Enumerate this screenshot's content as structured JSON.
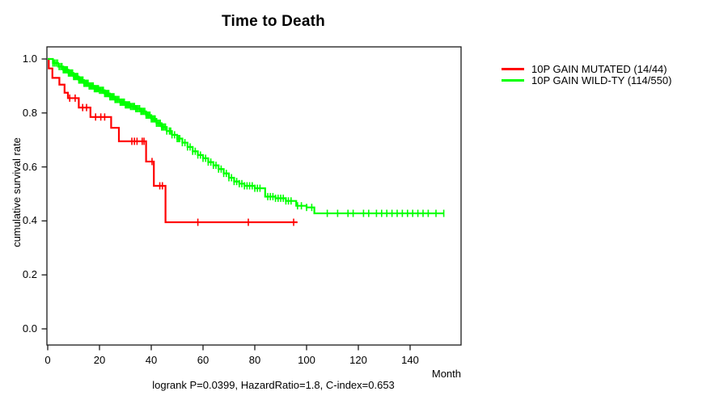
{
  "chart_data": {
    "type": "line",
    "chart_kind": "kaplan-meier-step",
    "title": "Time to Death",
    "xlabel": "Month",
    "ylabel": "cumulative survival rate",
    "xlim": [
      0,
      160
    ],
    "ylim": [
      0,
      1.0
    ],
    "xticks": [
      0,
      20,
      40,
      60,
      80,
      100,
      120,
      140
    ],
    "yticks": [
      0.0,
      0.2,
      0.4,
      0.6,
      0.8,
      1.0
    ],
    "grid": false,
    "legend_position": "right-outside",
    "annotation": "logrank P=0.0399, HazardRatio=1.8, C-index=0.653",
    "series": [
      {
        "name": "10P GAIN MUTATED (14/44)",
        "color": "#ff0000",
        "events": 14,
        "n": 44,
        "end_month": 96.5,
        "steps": [
          [
            0,
            1.0
          ],
          [
            0.4,
            0.965
          ],
          [
            1.8,
            0.93
          ],
          [
            4.5,
            0.905
          ],
          [
            6.5,
            0.875
          ],
          [
            7.8,
            0.855
          ],
          [
            12,
            0.82
          ],
          [
            16.5,
            0.785
          ],
          [
            24.5,
            0.745
          ],
          [
            27.5,
            0.695
          ],
          [
            38,
            0.62
          ],
          [
            41,
            0.53
          ],
          [
            45.5,
            0.395
          ]
        ],
        "censor_months": [
          8.5,
          10.6,
          13.5,
          15,
          18.5,
          20.5,
          22,
          32.5,
          33.5,
          34.5,
          36.5,
          37.2,
          40.3,
          43.3,
          44.3,
          58,
          77.5,
          95
        ]
      },
      {
        "name": "10P GAIN WILD-TY (114/550)",
        "color": "#00ff00",
        "events": 114,
        "n": 550,
        "end_month": 153,
        "steps": [
          [
            0,
            1.0
          ],
          [
            2,
            0.985
          ],
          [
            4,
            0.972
          ],
          [
            6,
            0.96
          ],
          [
            8,
            0.948
          ],
          [
            10,
            0.935
          ],
          [
            12,
            0.922
          ],
          [
            14,
            0.91
          ],
          [
            16,
            0.9
          ],
          [
            18,
            0.89
          ],
          [
            20,
            0.884
          ],
          [
            22,
            0.872
          ],
          [
            24,
            0.86
          ],
          [
            26,
            0.85
          ],
          [
            28,
            0.84
          ],
          [
            30,
            0.83
          ],
          [
            32,
            0.824
          ],
          [
            34,
            0.816
          ],
          [
            36,
            0.806
          ],
          [
            38,
            0.792
          ],
          [
            40,
            0.778
          ],
          [
            42,
            0.762
          ],
          [
            44,
            0.748
          ],
          [
            46,
            0.733
          ],
          [
            48,
            0.719
          ],
          [
            50,
            0.705
          ],
          [
            52,
            0.69
          ],
          [
            54,
            0.674
          ],
          [
            56,
            0.658
          ],
          [
            58,
            0.644
          ],
          [
            60,
            0.632
          ],
          [
            62,
            0.618
          ],
          [
            64,
            0.606
          ],
          [
            66,
            0.592
          ],
          [
            68,
            0.576
          ],
          [
            70,
            0.56
          ],
          [
            72,
            0.546
          ],
          [
            74,
            0.538
          ],
          [
            76,
            0.53
          ],
          [
            80,
            0.521
          ],
          [
            84,
            0.49
          ],
          [
            88,
            0.484
          ],
          [
            92,
            0.474
          ],
          [
            96,
            0.456
          ],
          [
            100,
            0.45
          ],
          [
            103,
            0.428
          ]
        ],
        "censor_months": [
          2,
          2.6,
          3.2,
          3.8,
          4.4,
          5,
          5.5,
          6,
          6.4,
          6.8,
          7.2,
          7.6,
          8,
          8.4,
          8.8,
          9.2,
          9.6,
          10,
          10.4,
          10.8,
          11.2,
          11.6,
          12,
          12.4,
          12.8,
          13.2,
          13.6,
          14,
          14.4,
          14.8,
          15.2,
          15.6,
          16,
          16.4,
          16.8,
          17.2,
          17.6,
          18,
          18.4,
          18.8,
          19.2,
          19.6,
          20,
          20.5,
          21,
          21.5,
          22,
          22.4,
          22.8,
          23.2,
          23.6,
          24,
          24.4,
          24.8,
          25.2,
          25.6,
          26,
          26.5,
          27,
          27.5,
          28,
          28.4,
          28.8,
          29.2,
          29.6,
          30,
          30.4,
          30.8,
          31.2,
          31.6,
          32,
          32.5,
          33,
          33.5,
          34,
          34.5,
          35,
          35.5,
          36,
          36.5,
          37,
          37.5,
          38,
          38.5,
          39,
          39.5,
          40,
          40.5,
          41,
          41.5,
          42,
          42.5,
          43,
          43.5,
          44,
          44.5,
          45,
          45.5,
          46,
          47,
          47.5,
          48,
          49,
          50,
          50.5,
          51,
          52,
          53,
          54,
          55,
          56,
          57,
          58,
          59,
          60,
          61,
          62,
          63,
          64,
          65,
          66,
          67,
          68,
          69,
          70,
          71,
          72,
          73,
          74,
          75,
          76,
          77,
          78,
          79,
          80,
          81,
          82,
          85,
          86,
          87,
          88,
          89,
          90,
          91,
          92,
          93,
          94,
          96.5,
          98,
          100,
          102,
          108,
          112,
          116,
          118,
          122,
          124,
          127,
          129,
          131,
          133,
          135,
          137,
          139,
          141,
          143,
          145,
          147,
          150,
          153
        ]
      }
    ]
  }
}
